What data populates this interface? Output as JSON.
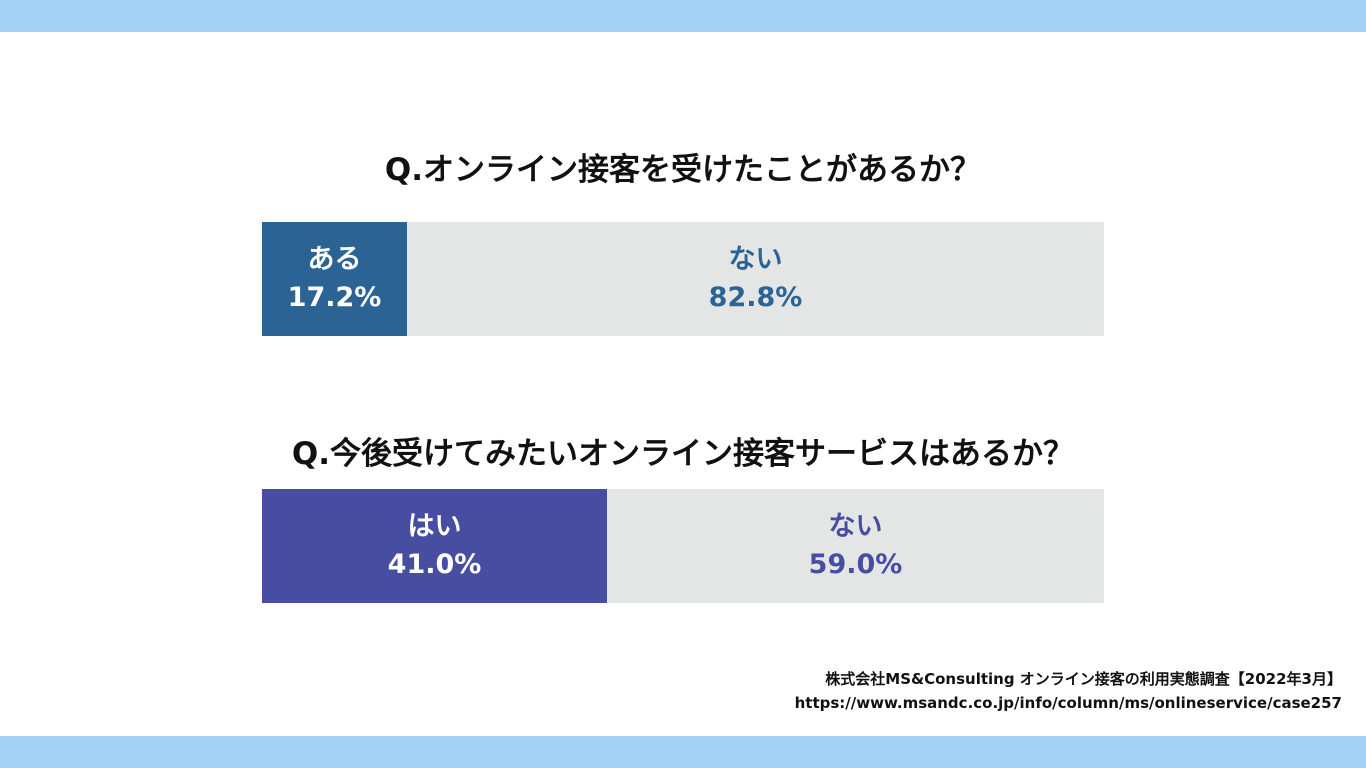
{
  "chart_data": [
    {
      "type": "bar",
      "title": "Q.オンライン接客を受けたことがあるか？",
      "categories": [
        "ある",
        "ない"
      ],
      "values": [
        17.2,
        82.8
      ],
      "value_labels": [
        "17.2%",
        "82.8%"
      ],
      "colors": {
        "primary": "#2c6395",
        "rest": "#e4e6e6"
      },
      "xlabel": "",
      "ylabel": ""
    },
    {
      "type": "bar",
      "title": "Q.今後受けてみたいオンライン接客サービスはあるか？",
      "categories": [
        "はい",
        "ない"
      ],
      "values": [
        41.0,
        59.0
      ],
      "value_labels": [
        "41.0%",
        "59.0%"
      ],
      "colors": {
        "primary": "#474ea2",
        "rest": "#e4e6e6"
      },
      "xlabel": "",
      "ylabel": ""
    }
  ],
  "source": {
    "line1": "株式会社MS&Consulting オンライン接客の利用実態調査【2022年3月】",
    "line2": "https://www.msandc.co.jp/info/column/ms/onlineservice/case257"
  }
}
